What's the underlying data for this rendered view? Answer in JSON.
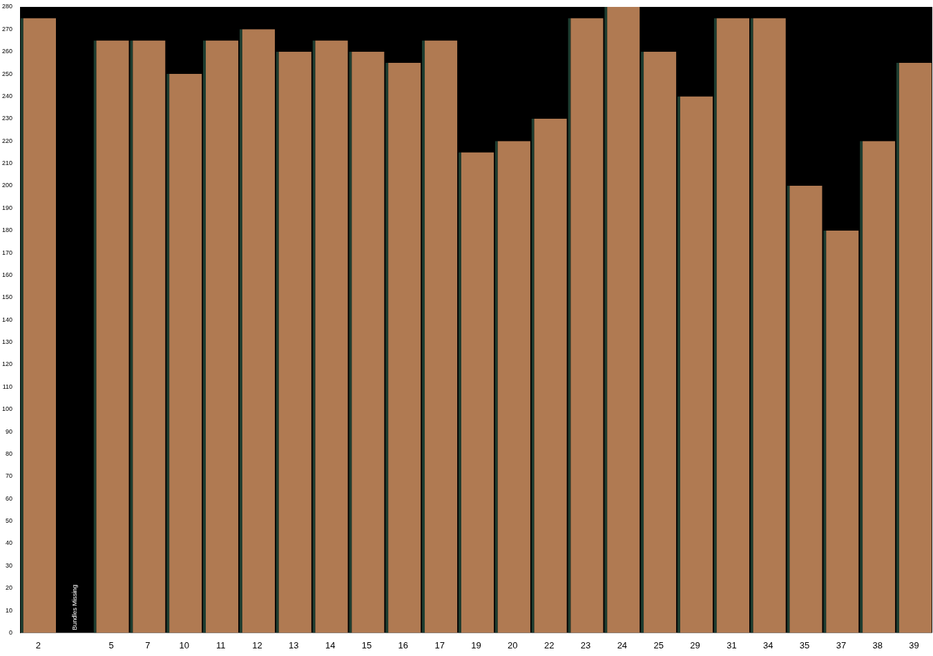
{
  "chart_data": {
    "type": "bar",
    "categories": [
      "2",
      null,
      "5",
      "7",
      "10",
      "11",
      "12",
      "13",
      "14",
      "15",
      "16",
      "17",
      "19",
      "20",
      "22",
      "23",
      "24",
      "25",
      "29",
      "31",
      "34",
      "35",
      "37",
      "38",
      "39"
    ],
    "values": [
      275,
      null,
      265,
      265,
      250,
      265,
      270,
      260,
      265,
      260,
      255,
      265,
      215,
      220,
      230,
      275,
      280,
      260,
      240,
      275,
      275,
      200,
      180,
      220,
      255
    ],
    "color": "#b07a52",
    "ylim": [
      0,
      280
    ],
    "yticks": [
      0,
      10,
      20,
      30,
      40,
      50,
      60,
      70,
      80,
      90,
      100,
      110,
      120,
      130,
      140,
      150,
      160,
      170,
      180,
      190,
      200,
      210,
      220,
      230,
      240,
      250,
      260,
      270,
      280
    ],
    "annotations": [
      "Bundles Missing"
    ]
  }
}
